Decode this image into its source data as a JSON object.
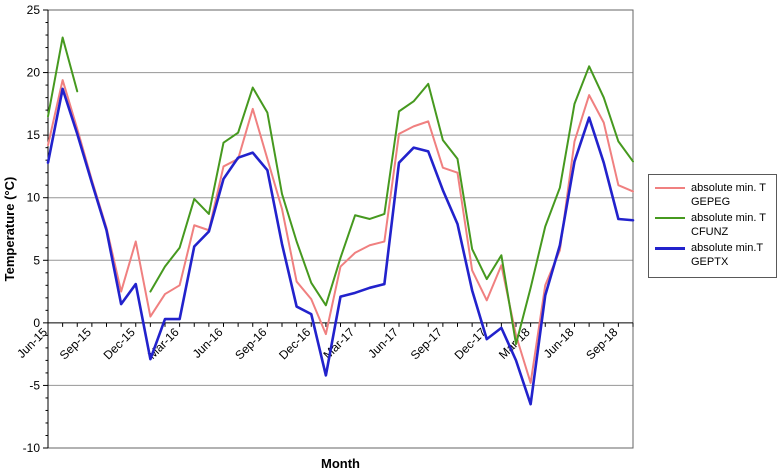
{
  "chart_data": {
    "type": "line",
    "title": "",
    "xlabel": "Month",
    "ylabel": "Temperature (°C)",
    "ylim": [
      -10,
      25
    ],
    "yticks": [
      25,
      20,
      15,
      10,
      5,
      0,
      -5,
      -10
    ],
    "grid": true,
    "legend_position": "right-outside",
    "categories": [
      "Jun-15",
      "Jul-15",
      "Aug-15",
      "Sep-15",
      "Oct-15",
      "Nov-15",
      "Dec-15",
      "Jan-16",
      "Feb-16",
      "Mar-16",
      "Apr-16",
      "May-16",
      "Jun-16",
      "Jul-16",
      "Aug-16",
      "Sep-16",
      "Oct-16",
      "Nov-16",
      "Dec-16",
      "Jan-17",
      "Feb-17",
      "Mar-17",
      "Apr-17",
      "May-17",
      "Jun-17",
      "Jul-17",
      "Aug-17",
      "Sep-17",
      "Oct-17",
      "Nov-17",
      "Dec-17",
      "Jan-18",
      "Feb-18",
      "Mar-18",
      "Apr-18",
      "May-18",
      "Jun-18",
      "Jul-18",
      "Aug-18",
      "Sep-18",
      "Oct-18"
    ],
    "xtick_labels": [
      "Jun-15",
      "Sep-15",
      "Dec-15",
      "Mar-16",
      "Jun-16",
      "Sep-16",
      "Dec-16",
      "Mar-17",
      "Jun-17",
      "Sep-17",
      "Dec-17",
      "Mar-18",
      "Jun-18",
      "Sep-18"
    ],
    "xtick_every": 3,
    "series": [
      {
        "name": "absolute min. T GEPEG",
        "legend_lines": [
          "absolute min. T",
          "GEPEG"
        ],
        "color": "#F08080",
        "width": 2,
        "values": [
          14.2,
          19.4,
          15.5,
          11.4,
          7.6,
          2.5,
          6.5,
          0.5,
          2.3,
          3.0,
          7.8,
          7.4,
          12.5,
          13.1,
          17.1,
          13.1,
          9.1,
          3.3,
          1.9,
          -0.9,
          4.5,
          5.6,
          6.2,
          6.5,
          15.1,
          15.7,
          16.1,
          12.4,
          12.0,
          4.2,
          1.8,
          4.6,
          -1.0,
          -4.8,
          3.0,
          5.8,
          14.5,
          18.2,
          16.0,
          11.0,
          10.5
        ]
      },
      {
        "name": "absolute min. T CFUNZ",
        "legend_lines": [
          "absolute min. T",
          "CFUNZ"
        ],
        "color": "#46991F",
        "width": 2,
        "values": [
          16.5,
          22.8,
          18.5,
          null,
          null,
          null,
          null,
          2.5,
          4.5,
          6.0,
          9.9,
          8.7,
          14.4,
          15.2,
          18.8,
          16.8,
          10.3,
          6.5,
          3.2,
          1.4,
          5.2,
          8.6,
          8.3,
          8.7,
          16.9,
          17.7,
          19.1,
          14.6,
          13.1,
          5.9,
          3.5,
          5.4,
          -1.7,
          2.8,
          7.7,
          10.8,
          17.5,
          20.5,
          18.0,
          14.5,
          12.9
        ]
      },
      {
        "name": "absolute min.T GEPTX",
        "legend_lines": [
          "absolute min.T",
          "GEPTX"
        ],
        "color": "#2222CC",
        "width": 2.6,
        "values": [
          12.8,
          18.7,
          15.1,
          11.2,
          7.4,
          1.5,
          3.1,
          -2.9,
          0.3,
          0.3,
          6.1,
          7.3,
          11.5,
          13.2,
          13.6,
          12.2,
          6.3,
          1.3,
          0.7,
          -4.2,
          2.1,
          2.4,
          2.8,
          3.1,
          12.8,
          14.0,
          13.7,
          10.6,
          7.9,
          2.6,
          -1.3,
          -0.4,
          -3.0,
          -6.5,
          2.2,
          6.2,
          12.9,
          16.4,
          12.8,
          8.3,
          8.2
        ]
      }
    ],
    "colors": {
      "grid": "#969696",
      "axis": "#000000",
      "plot_border": "#666666",
      "text": "#000000",
      "background": "#ffffff"
    }
  }
}
